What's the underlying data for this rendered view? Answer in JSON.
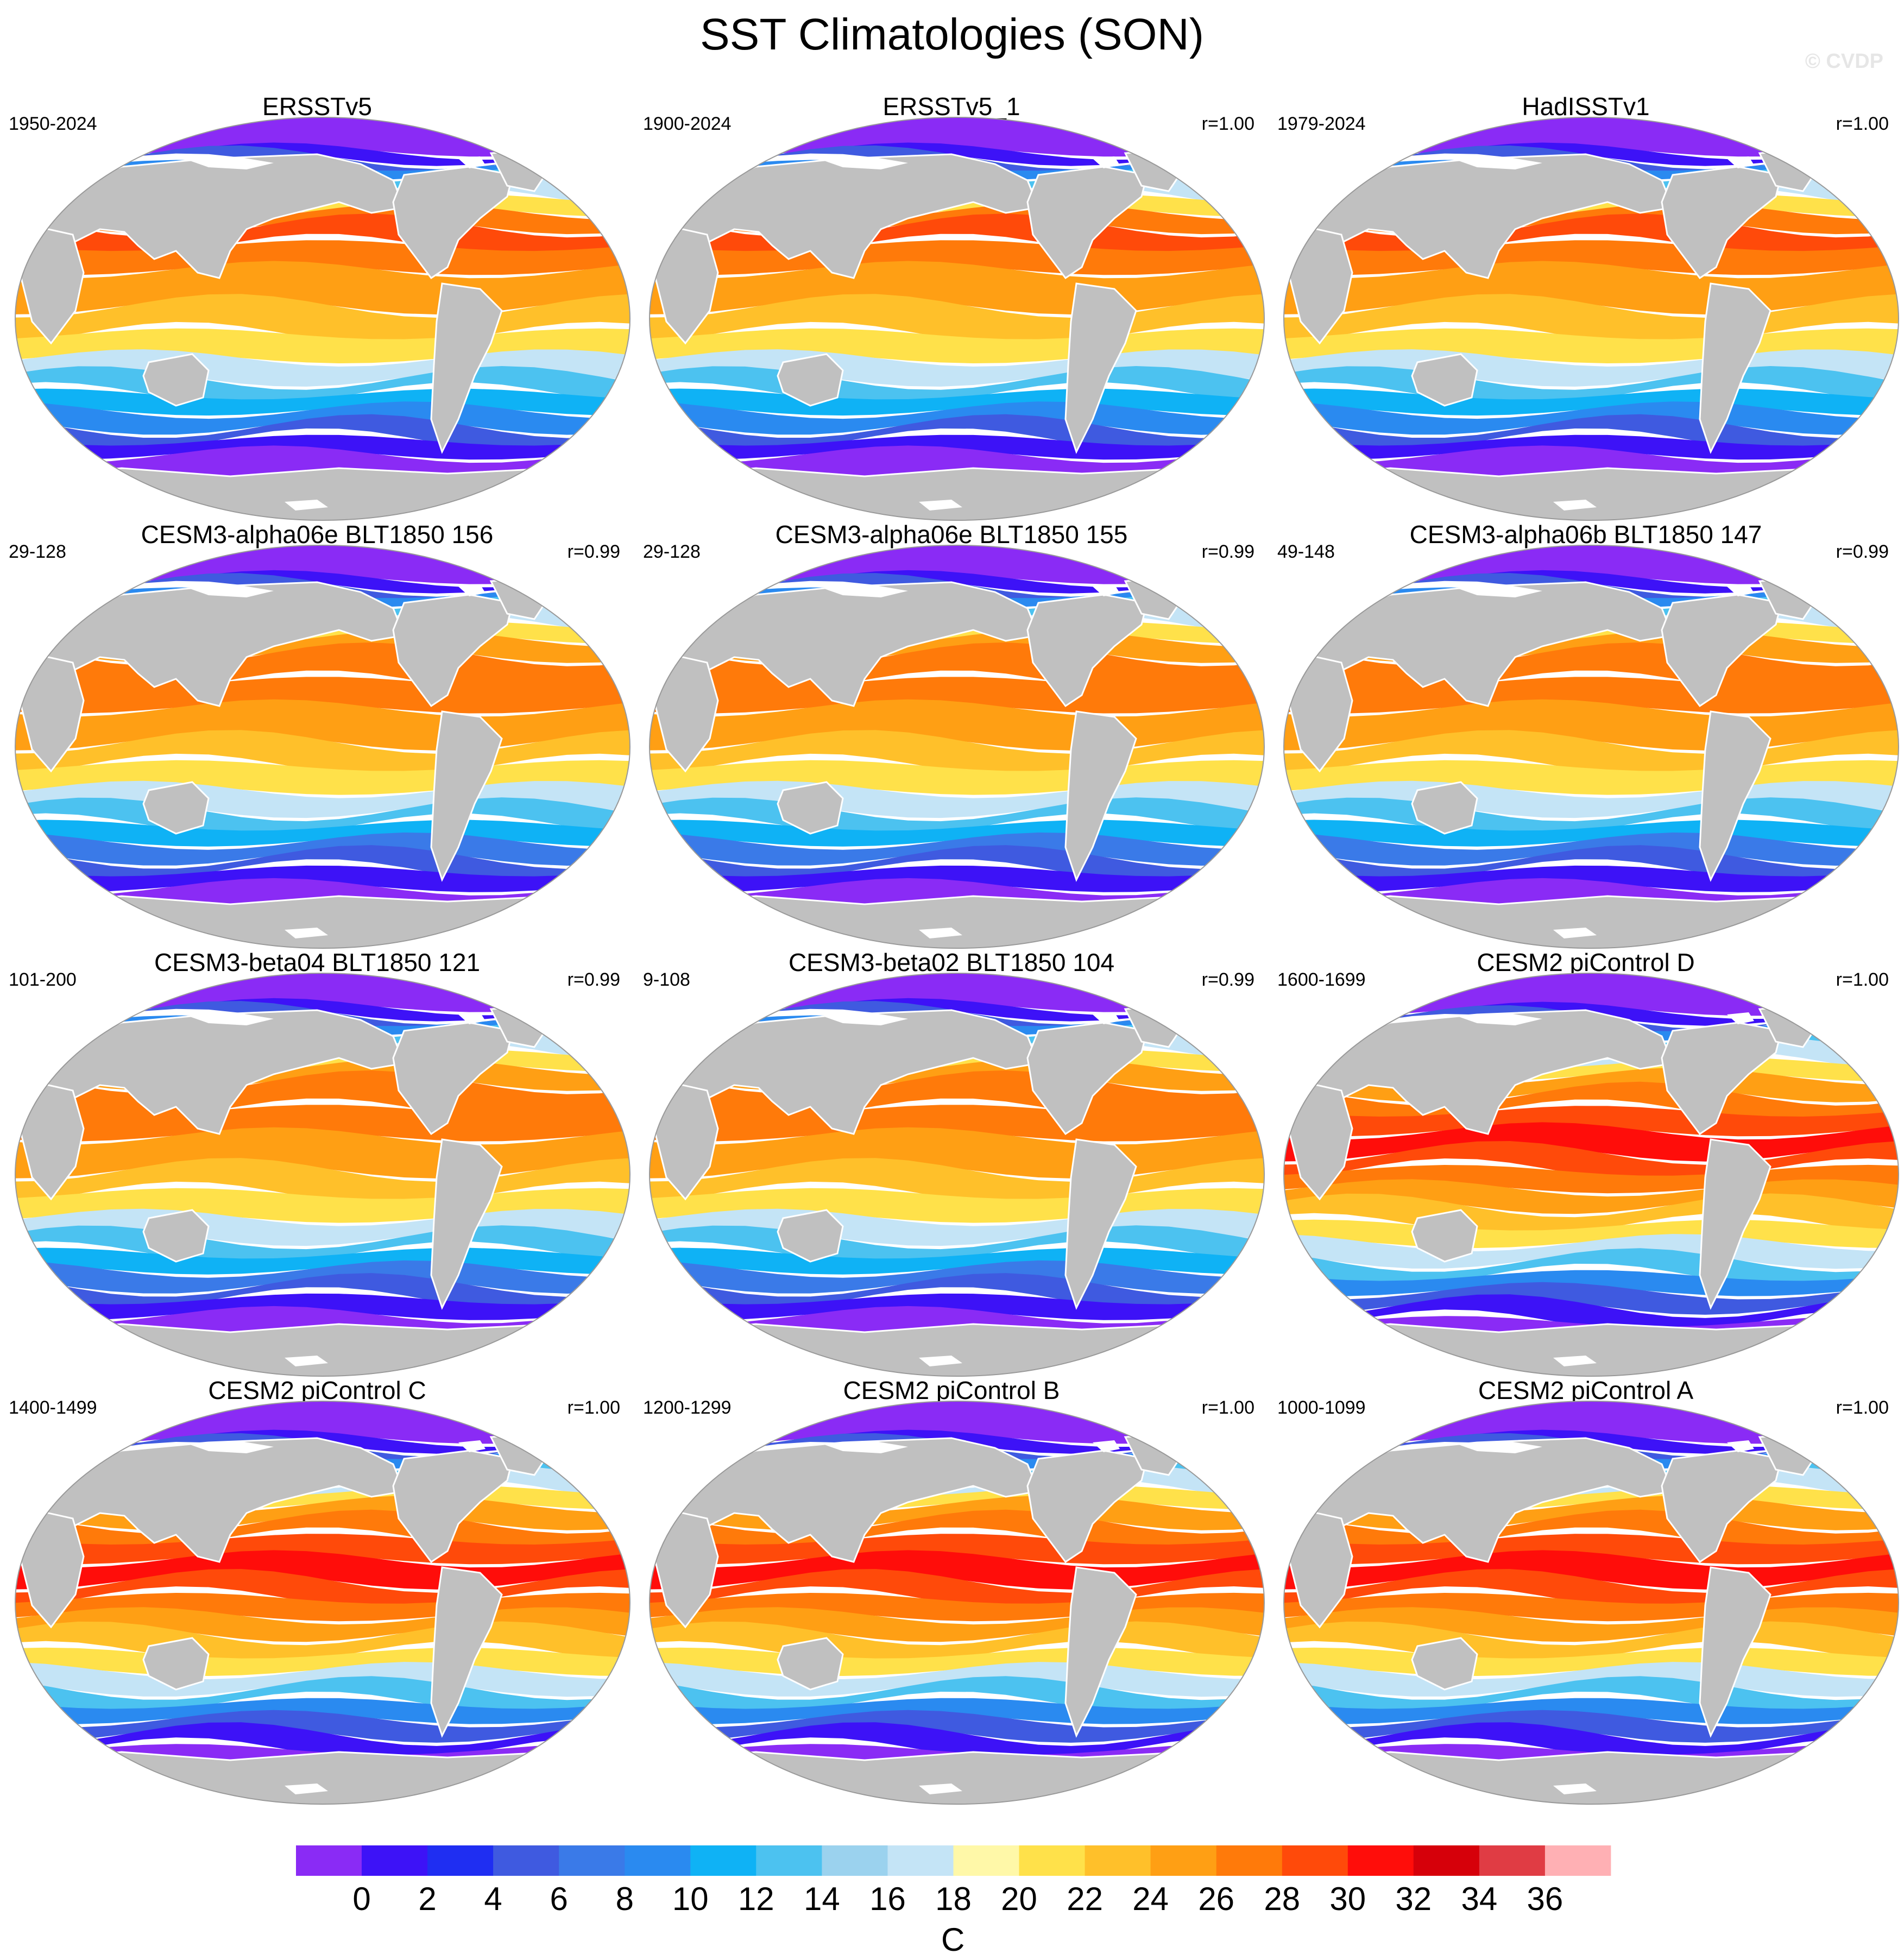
{
  "title": "SST Climatologies (SON)",
  "watermark": "© CVDP",
  "panels": [
    {
      "title": "ERSSTv5",
      "period": "1950-2024",
      "r": "",
      "variant": "obs"
    },
    {
      "title": "ERSSTv5_1",
      "period": "1900-2024",
      "r": "r=1.00",
      "variant": "obs"
    },
    {
      "title": "HadISSTv1",
      "period": "1979-2024",
      "r": "r=1.00",
      "variant": "obs"
    },
    {
      "title": "CESM3-alpha06e BLT1850 156",
      "period": "29-128",
      "r": "r=0.99",
      "variant": "cesm3"
    },
    {
      "title": "CESM3-alpha06e BLT1850 155",
      "period": "29-128",
      "r": "r=0.99",
      "variant": "cesm3"
    },
    {
      "title": "CESM3-alpha06b BLT1850 147",
      "period": "49-148",
      "r": "r=0.99",
      "variant": "cesm3"
    },
    {
      "title": "CESM3-beta04 BLT1850 121",
      "period": "101-200",
      "r": "r=0.99",
      "variant": "cesm3"
    },
    {
      "title": "CESM3-beta02 BLT1850 104",
      "period": "9-108",
      "r": "r=0.99",
      "variant": "cesm3"
    },
    {
      "title": "CESM2 piControl D",
      "period": "1600-1699",
      "r": "r=1.00",
      "variant": "cesm2"
    },
    {
      "title": "CESM2 piControl C",
      "period": "1400-1499",
      "r": "r=1.00",
      "variant": "cesm2"
    },
    {
      "title": "CESM2 piControl B",
      "period": "1200-1299",
      "r": "r=1.00",
      "variant": "cesm2"
    },
    {
      "title": "CESM2 piControl A",
      "period": "1000-1099",
      "r": "r=1.00",
      "variant": "cesm2"
    }
  ],
  "colorbar": {
    "units": "C",
    "labels": [
      "0",
      "2",
      "4",
      "6",
      "8",
      "10",
      "12",
      "14",
      "16",
      "18",
      "20",
      "22",
      "24",
      "26",
      "28",
      "30",
      "32",
      "34",
      "36"
    ],
    "colors": [
      "#8a2bf5",
      "#3d12f7",
      "#1f2ef2",
      "#3f5ae0",
      "#3a7ae8",
      "#2a8af0",
      "#0fb2f5",
      "#4cc2f0",
      "#9bd2ee",
      "#c4e4f6",
      "#fff8a8",
      "#ffe14a",
      "#ffc02a",
      "#ff9f14",
      "#ff7a0a",
      "#ff4a0a",
      "#ff0d0a",
      "#d6000a",
      "#e03c44",
      "#ffb0b4"
    ]
  },
  "map_colors": {
    "land": "#c0c0c0",
    "ice": "#ffffff",
    "border": "#999999"
  }
}
